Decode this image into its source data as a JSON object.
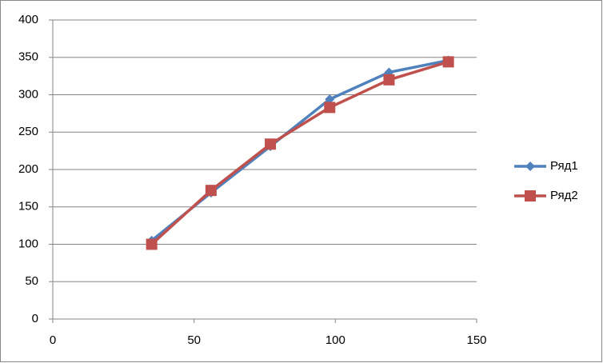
{
  "chart_data": {
    "type": "line",
    "x": [
      35,
      56,
      77,
      98,
      119,
      140
    ],
    "series": [
      {
        "name": "Ряд1",
        "color": "#4f81bd",
        "marker": "diamond",
        "values": [
          105,
          169,
          231,
          294,
          330,
          346
        ]
      },
      {
        "name": "Ряд2",
        "color": "#c0504d",
        "marker": "square",
        "values": [
          100,
          172,
          234,
          283,
          320,
          344
        ]
      }
    ],
    "xlim": [
      0,
      150
    ],
    "xticks": [
      0,
      50,
      100,
      150
    ],
    "ylim": [
      0,
      400
    ],
    "yticks": [
      0,
      50,
      100,
      150,
      200,
      250,
      300,
      350,
      400
    ],
    "grid": true,
    "legend": "right"
  }
}
